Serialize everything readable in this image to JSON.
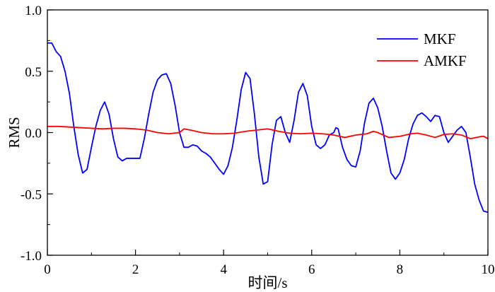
{
  "chart_data": {
    "type": "line",
    "title": "",
    "xlabel": "时间/s",
    "ylabel": "RMS",
    "xlim": [
      0,
      10
    ],
    "ylim": [
      -1.0,
      1.0
    ],
    "xticks": [
      0,
      2,
      4,
      6,
      8,
      10
    ],
    "yticks": [
      -1.0,
      -0.5,
      0.0,
      0.5,
      1.0
    ],
    "xtick_labels": [
      "0",
      "2",
      "4",
      "6",
      "8",
      "10"
    ],
    "ytick_labels": [
      "-1.0",
      "-0.5",
      "0.0",
      "0.5",
      "1.0"
    ],
    "grid": false,
    "legend_position": "top-right",
    "series": [
      {
        "name": "MKF",
        "color": "#0000ff",
        "points": [
          [
            0.0,
            0.73
          ],
          [
            0.1,
            0.73
          ],
          [
            0.2,
            0.66
          ],
          [
            0.3,
            0.62
          ],
          [
            0.4,
            0.5
          ],
          [
            0.5,
            0.32
          ],
          [
            0.6,
            0.05
          ],
          [
            0.7,
            -0.18
          ],
          [
            0.8,
            -0.33
          ],
          [
            0.9,
            -0.3
          ],
          [
            1.0,
            -0.12
          ],
          [
            1.1,
            0.05
          ],
          [
            1.2,
            0.18
          ],
          [
            1.3,
            0.25
          ],
          [
            1.4,
            0.15
          ],
          [
            1.5,
            -0.05
          ],
          [
            1.6,
            -0.2
          ],
          [
            1.7,
            -0.23
          ],
          [
            1.8,
            -0.21
          ],
          [
            1.9,
            -0.21
          ],
          [
            2.0,
            -0.21
          ],
          [
            2.1,
            -0.21
          ],
          [
            2.2,
            -0.05
          ],
          [
            2.3,
            0.15
          ],
          [
            2.4,
            0.33
          ],
          [
            2.5,
            0.43
          ],
          [
            2.6,
            0.47
          ],
          [
            2.7,
            0.48
          ],
          [
            2.8,
            0.4
          ],
          [
            2.9,
            0.22
          ],
          [
            3.0,
            0.0
          ],
          [
            3.1,
            -0.12
          ],
          [
            3.2,
            -0.12
          ],
          [
            3.3,
            -0.1
          ],
          [
            3.4,
            -0.11
          ],
          [
            3.5,
            -0.15
          ],
          [
            3.6,
            -0.17
          ],
          [
            3.7,
            -0.2
          ],
          [
            3.8,
            -0.25
          ],
          [
            3.9,
            -0.3
          ],
          [
            4.0,
            -0.34
          ],
          [
            4.1,
            -0.27
          ],
          [
            4.2,
            -0.12
          ],
          [
            4.3,
            0.1
          ],
          [
            4.4,
            0.35
          ],
          [
            4.5,
            0.49
          ],
          [
            4.6,
            0.44
          ],
          [
            4.7,
            0.15
          ],
          [
            4.8,
            -0.2
          ],
          [
            4.9,
            -0.42
          ],
          [
            5.0,
            -0.4
          ],
          [
            5.1,
            -0.1
          ],
          [
            5.2,
            0.1
          ],
          [
            5.3,
            0.13
          ],
          [
            5.4,
            0.0
          ],
          [
            5.5,
            -0.08
          ],
          [
            5.6,
            0.1
          ],
          [
            5.7,
            0.33
          ],
          [
            5.8,
            0.4
          ],
          [
            5.9,
            0.3
          ],
          [
            6.0,
            0.05
          ],
          [
            6.1,
            -0.1
          ],
          [
            6.2,
            -0.13
          ],
          [
            6.3,
            -0.1
          ],
          [
            6.4,
            -0.02
          ],
          [
            6.5,
            0.0
          ],
          [
            6.55,
            0.04
          ],
          [
            6.6,
            0.03
          ],
          [
            6.7,
            -0.12
          ],
          [
            6.8,
            -0.22
          ],
          [
            6.9,
            -0.27
          ],
          [
            7.0,
            -0.28
          ],
          [
            7.1,
            -0.15
          ],
          [
            7.2,
            0.08
          ],
          [
            7.3,
            0.24
          ],
          [
            7.4,
            0.28
          ],
          [
            7.5,
            0.2
          ],
          [
            7.6,
            0.05
          ],
          [
            7.7,
            -0.15
          ],
          [
            7.8,
            -0.33
          ],
          [
            7.9,
            -0.38
          ],
          [
            8.0,
            -0.33
          ],
          [
            8.1,
            -0.22
          ],
          [
            8.2,
            -0.05
          ],
          [
            8.3,
            0.07
          ],
          [
            8.4,
            0.14
          ],
          [
            8.5,
            0.16
          ],
          [
            8.6,
            0.13
          ],
          [
            8.7,
            0.09
          ],
          [
            8.8,
            0.14
          ],
          [
            8.9,
            0.13
          ],
          [
            9.0,
            0.0
          ],
          [
            9.1,
            -0.08
          ],
          [
            9.2,
            -0.03
          ],
          [
            9.3,
            0.02
          ],
          [
            9.4,
            0.05
          ],
          [
            9.5,
            0.0
          ],
          [
            9.6,
            -0.2
          ],
          [
            9.7,
            -0.42
          ],
          [
            9.8,
            -0.55
          ],
          [
            9.9,
            -0.64
          ],
          [
            10.0,
            -0.65
          ]
        ]
      },
      {
        "name": "AMKF",
        "color": "#ff0000",
        "points": [
          [
            0.0,
            0.05
          ],
          [
            0.25,
            0.05
          ],
          [
            0.5,
            0.045
          ],
          [
            0.75,
            0.04
          ],
          [
            1.0,
            0.035
          ],
          [
            1.25,
            0.03
          ],
          [
            1.5,
            0.035
          ],
          [
            1.75,
            0.035
          ],
          [
            2.0,
            0.03
          ],
          [
            2.25,
            0.02
          ],
          [
            2.5,
            0.0
          ],
          [
            2.75,
            -0.01
          ],
          [
            3.0,
            0.0
          ],
          [
            3.1,
            0.03
          ],
          [
            3.25,
            0.02
          ],
          [
            3.5,
            0.0
          ],
          [
            3.75,
            -0.01
          ],
          [
            4.0,
            -0.01
          ],
          [
            4.25,
            -0.005
          ],
          [
            4.5,
            0.01
          ],
          [
            4.75,
            0.02
          ],
          [
            5.0,
            0.03
          ],
          [
            5.25,
            0.01
          ],
          [
            5.5,
            -0.005
          ],
          [
            5.75,
            -0.01
          ],
          [
            6.0,
            -0.005
          ],
          [
            6.25,
            -0.01
          ],
          [
            6.5,
            -0.02
          ],
          [
            6.75,
            -0.04
          ],
          [
            7.0,
            -0.02
          ],
          [
            7.25,
            -0.01
          ],
          [
            7.4,
            0.01
          ],
          [
            7.5,
            0.0
          ],
          [
            7.75,
            -0.04
          ],
          [
            8.0,
            -0.03
          ],
          [
            8.25,
            -0.01
          ],
          [
            8.4,
            -0.005
          ],
          [
            8.6,
            -0.02
          ],
          [
            8.8,
            -0.04
          ],
          [
            9.0,
            -0.015
          ],
          [
            9.2,
            -0.01
          ],
          [
            9.4,
            -0.02
          ],
          [
            9.6,
            -0.05
          ],
          [
            9.8,
            -0.035
          ],
          [
            9.9,
            -0.03
          ],
          [
            10.0,
            -0.05
          ]
        ]
      }
    ]
  }
}
